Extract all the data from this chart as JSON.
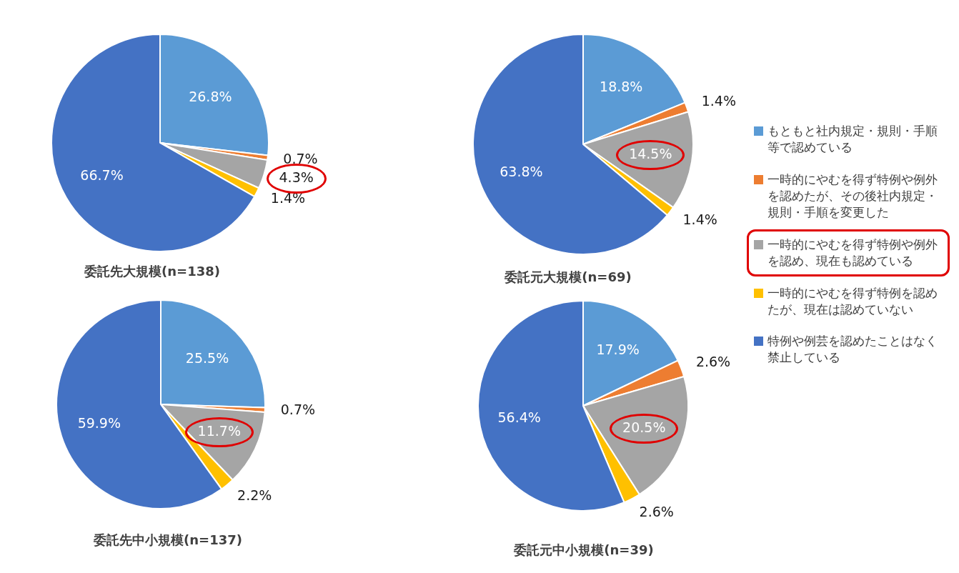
{
  "chart_data": [
    {
      "type": "pie",
      "title": "委託先大規模(n=138)",
      "categories": [
        "もともと社内規定・規則・手順等で認めている",
        "一時的にやむを得ず特例や例外を認めたが、その後社内規定・規則・手順を変更した",
        "一時的にやむを得ず特例や例外を認め、現在も認めている",
        "一時的にやむを得ず特例を認めたが、現在は認めていない",
        "特例や例芸を認めたことはなく禁止している"
      ],
      "values": [
        26.8,
        0.7,
        4.3,
        1.4,
        66.7
      ],
      "colors": [
        "#5b9bd5",
        "#ed7d31",
        "#a5a5a5",
        "#ffc000",
        "#4472c4"
      ],
      "value_labels": [
        "26.8%",
        "0.7%",
        "4.3%",
        "1.4%",
        "66.7%"
      ],
      "legend": "right"
    },
    {
      "type": "pie",
      "title": "委託元大規模(n=69)",
      "categories": [
        null,
        null,
        null,
        null,
        null
      ],
      "values": [
        18.8,
        1.4,
        14.5,
        1.4,
        63.8
      ],
      "colors": [
        "#5b9bd5",
        "#ed7d31",
        "#a5a5a5",
        "#ffc000",
        "#4472c4"
      ],
      "value_labels": [
        "18.8%",
        "1.4%",
        "14.5%",
        "1.4%",
        "63.8%"
      ]
    },
    {
      "type": "pie",
      "title": "委託先中小規模(n=137)",
      "categories": [
        null,
        null,
        null,
        null,
        null
      ],
      "values": [
        25.5,
        0.7,
        11.7,
        2.2,
        59.9
      ],
      "colors": [
        "#5b9bd5",
        "#ed7d31",
        "#a5a5a5",
        "#ffc000",
        "#4472c4"
      ],
      "value_labels": [
        "25.5%",
        "0.7%",
        "11.7%",
        "2.2%",
        "59.9%"
      ]
    },
    {
      "type": "pie",
      "title": "委託元中小規模(n=39)",
      "categories": [
        null,
        null,
        null,
        null,
        null
      ],
      "values": [
        17.9,
        2.6,
        20.5,
        2.6,
        56.4
      ],
      "colors": [
        "#5b9bd5",
        "#ed7d31",
        "#a5a5a5",
        "#ffc000",
        "#4472c4"
      ],
      "value_labels": [
        "17.9%",
        "2.6%",
        "20.5%",
        "2.6%",
        "56.4%"
      ]
    }
  ]
}
